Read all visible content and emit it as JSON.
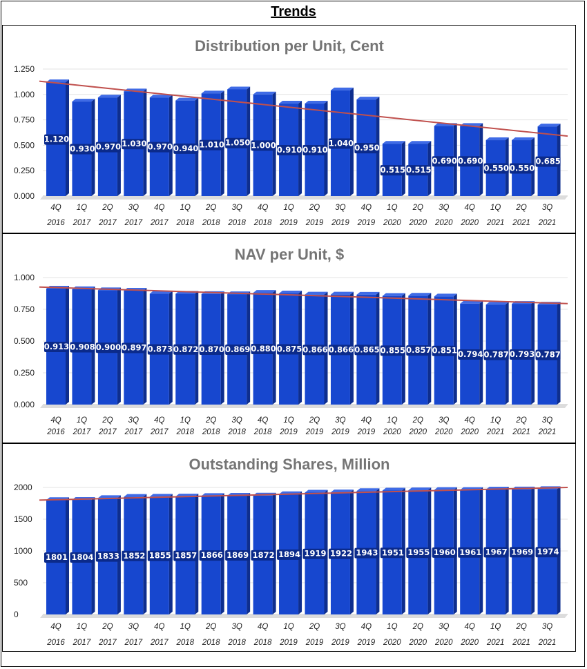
{
  "page": {
    "title": "Trends"
  },
  "colors": {
    "bar_front": "#1747CF",
    "bar_side": "#0E2E8E",
    "bar_top": "#3F6BE6",
    "label_bg": "#0B2A8A",
    "trendline": "#C0504D",
    "grid": "#E3E3E3"
  },
  "chart_data": [
    {
      "type": "bar",
      "title": "Distribution per Unit, Cent",
      "categories": [
        "4Q 2016",
        "1Q 2017",
        "2Q 2017",
        "3Q 2017",
        "4Q 2017",
        "1Q 2018",
        "2Q 2018",
        "3Q 2018",
        "4Q 2018",
        "1Q 2019",
        "2Q 2019",
        "3Q 2019",
        "4Q 2019",
        "1Q 2020",
        "2Q 2020",
        "3Q 2020",
        "4Q 2020",
        "1Q 2021",
        "2Q 2021",
        "3Q 2021"
      ],
      "values": [
        1.12,
        0.93,
        0.97,
        1.03,
        0.97,
        0.94,
        1.01,
        1.05,
        1.0,
        0.91,
        0.91,
        1.04,
        0.95,
        0.515,
        0.515,
        0.69,
        0.69,
        0.55,
        0.55,
        0.685
      ],
      "value_labels": [
        "1.120",
        "0.930",
        "0.970",
        "1.030",
        "0.970",
        "0.940",
        "1.010",
        "1.050",
        "1.000",
        "0.910",
        "0.910",
        "1.040",
        "0.950",
        "0.515",
        "0.515",
        "0.690",
        "0.690",
        "0.550",
        "0.550",
        "0.685"
      ],
      "yticks": [
        "0.000",
        "0.250",
        "0.500",
        "0.750",
        "1.000",
        "1.250"
      ],
      "ylim": [
        0,
        1.25
      ],
      "trendline": [
        1.13,
        0.59
      ],
      "xlabel": "",
      "ylabel": ""
    },
    {
      "type": "bar",
      "title": "NAV per Unit, $",
      "categories": [
        "4Q 2016",
        "1Q 2017",
        "2Q 2017",
        "3Q 2017",
        "4Q 2017",
        "1Q 2018",
        "2Q 2018",
        "3Q 2018",
        "4Q 2018",
        "1Q 2019",
        "2Q 2019",
        "3Q 2019",
        "4Q 2019",
        "1Q 2020",
        "2Q 2020",
        "3Q 2020",
        "4Q 2020",
        "1Q 2021",
        "2Q 2021",
        "3Q 2021"
      ],
      "values": [
        0.913,
        0.908,
        0.9,
        0.897,
        0.873,
        0.872,
        0.87,
        0.869,
        0.88,
        0.875,
        0.866,
        0.866,
        0.865,
        0.855,
        0.857,
        0.851,
        0.794,
        0.787,
        0.793,
        0.787
      ],
      "value_labels": [
        "0.913",
        "0.908",
        "0.900",
        "0.897",
        "0.873",
        "0.872",
        "0.870",
        "0.869",
        "0.880",
        "0.875",
        "0.866",
        "0.866",
        "0.865",
        "0.855",
        "0.857",
        "0.851",
        "0.794",
        "0.787",
        "0.793",
        "0.787"
      ],
      "yticks": [
        "0.000",
        "0.250",
        "0.500",
        "0.750",
        "1.000"
      ],
      "ylim": [
        0,
        1.0
      ],
      "trendline": [
        0.925,
        0.795
      ],
      "xlabel": "",
      "ylabel": ""
    },
    {
      "type": "bar",
      "title": "Outstanding Shares, Million",
      "categories": [
        "4Q 2016",
        "1Q 2017",
        "2Q 2017",
        "3Q 2017",
        "4Q 2017",
        "1Q 2018",
        "2Q 2018",
        "3Q 2018",
        "4Q 2018",
        "1Q 2019",
        "2Q 2019",
        "3Q 2019",
        "4Q 2019",
        "1Q 2020",
        "2Q 2020",
        "3Q 2020",
        "4Q 2020",
        "1Q 2021",
        "2Q 2021",
        "3Q 2021"
      ],
      "values": [
        1801,
        1804,
        1833,
        1852,
        1855,
        1857,
        1866,
        1869,
        1872,
        1894,
        1919,
        1922,
        1943,
        1951,
        1955,
        1960,
        1961,
        1967,
        1969,
        1974
      ],
      "value_labels": [
        "1801",
        "1804",
        "1833",
        "1852",
        "1855",
        "1857",
        "1866",
        "1869",
        "1872",
        "1894",
        "1919",
        "1922",
        "1943",
        "1951",
        "1955",
        "1960",
        "1961",
        "1967",
        "1969",
        "1974"
      ],
      "yticks": [
        "0",
        "500",
        "1000",
        "1500",
        "2000"
      ],
      "ylim": [
        0,
        2000
      ],
      "trendline": [
        1800,
        2000
      ],
      "xlabel": "",
      "ylabel": ""
    }
  ]
}
